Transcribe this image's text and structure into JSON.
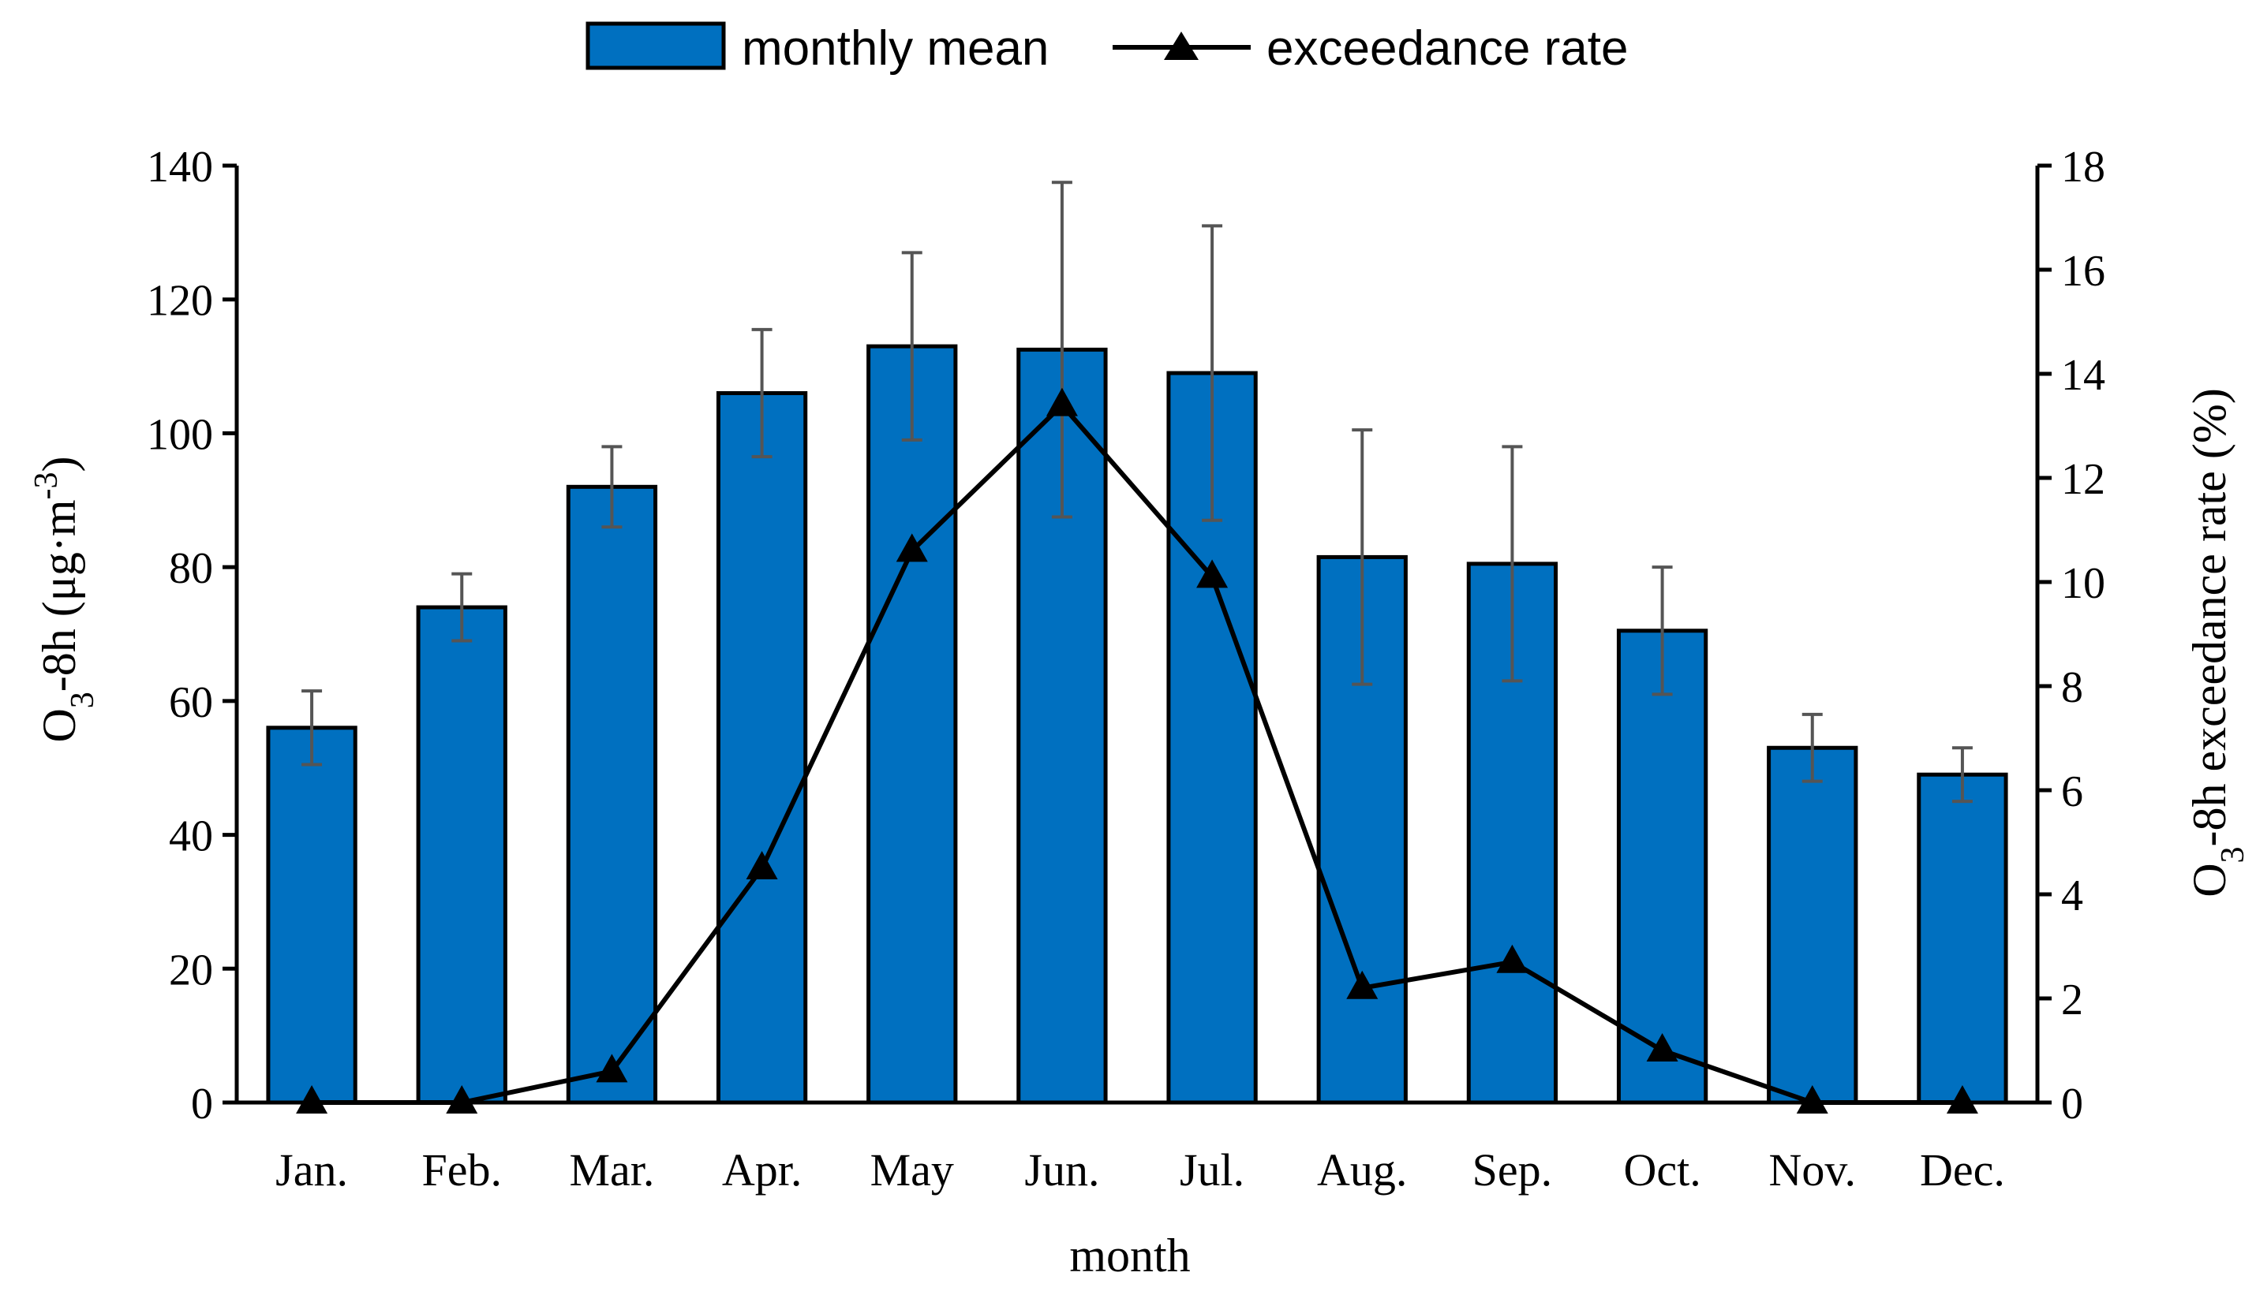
{
  "chart_data": {
    "type": "bar+line",
    "categories": [
      "Jan.",
      "Feb.",
      "Mar.",
      "Apr.",
      "May",
      "Jun.",
      "Jul.",
      "Aug.",
      "Sep.",
      "Oct.",
      "Nov.",
      "Dec."
    ],
    "xlabel": "month",
    "ylabel_left": {
      "prefix": "O",
      "sub": "3",
      "mid": "-8h (μg·m",
      "sup": "-3",
      "suffix": ")"
    },
    "ylabel_right": {
      "prefix": "O",
      "sub": "3",
      "suffix": "-8h exceedance rate (%)"
    },
    "ylim_left": [
      0,
      140
    ],
    "yticks_left": [
      0,
      20,
      40,
      60,
      80,
      100,
      120,
      140
    ],
    "ylim_right": [
      0,
      18
    ],
    "yticks_right": [
      0,
      2,
      4,
      6,
      8,
      10,
      12,
      14,
      16,
      18
    ],
    "series": [
      {
        "name": "monthly mean",
        "type": "bar",
        "axis": "left",
        "color": "#0070C0",
        "values": [
          56,
          74,
          92,
          106,
          113,
          112.5,
          109,
          81.5,
          80.5,
          70.5,
          53,
          49
        ],
        "error": [
          5.5,
          5,
          6,
          9.5,
          14,
          25,
          22,
          19,
          17.5,
          9.5,
          5,
          4
        ]
      },
      {
        "name": "exceedance rate",
        "type": "line",
        "axis": "right",
        "color": "#000000",
        "marker": "triangle",
        "values": [
          0,
          0,
          0.6,
          4.5,
          10.6,
          13.4,
          10.1,
          2.2,
          2.7,
          1.0,
          0,
          0
        ]
      }
    ],
    "legend_position": "top-center",
    "grid": false
  }
}
